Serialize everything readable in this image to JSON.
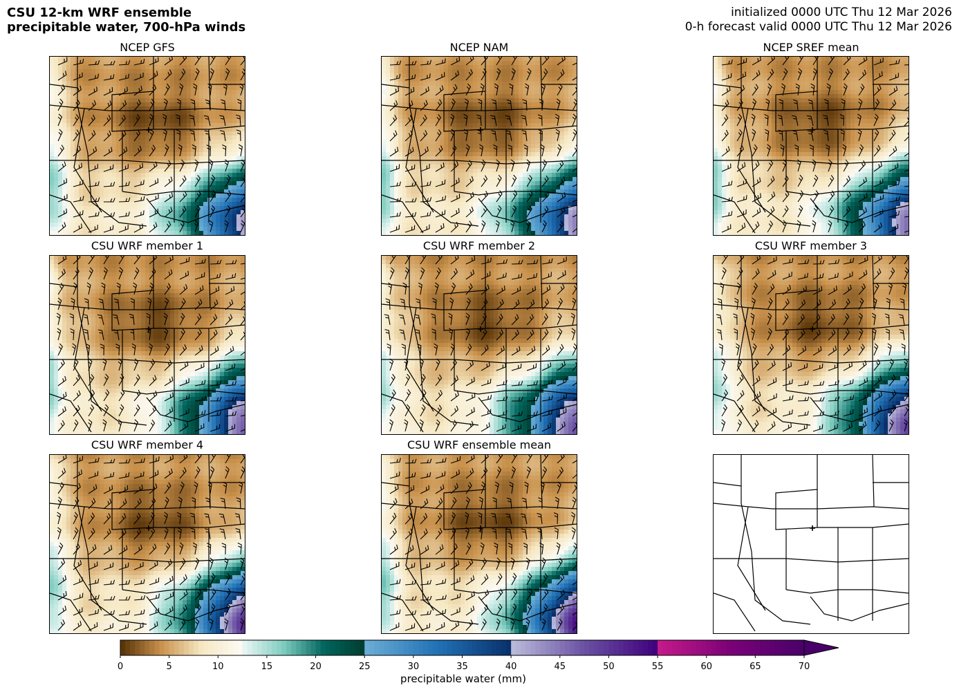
{
  "header": {
    "title_line1": "CSU 12-km WRF ensemble",
    "title_line2": "precipitable water, 700-hPa winds",
    "init_line": "initialized 0000 UTC Thu 12 Mar 2026",
    "valid_line": "0-h forecast valid 0000 UTC Thu 12 Mar 2026"
  },
  "panels": [
    {
      "title": "NCEP GFS"
    },
    {
      "title": "NCEP NAM"
    },
    {
      "title": "NCEP SREF mean"
    },
    {
      "title": "CSU WRF member 1"
    },
    {
      "title": "CSU WRF member 2"
    },
    {
      "title": "CSU WRF member 3"
    },
    {
      "title": "CSU WRF member 4"
    },
    {
      "title": "CSU WRF ensemble mean"
    },
    {
      "title": ""
    }
  ],
  "chart_data": {
    "type": "heatmap",
    "colorbar": {
      "label": "precipitable water (mm)",
      "ticks": [
        0,
        5,
        10,
        15,
        20,
        25,
        30,
        35,
        40,
        45,
        50,
        55,
        60,
        65,
        70
      ],
      "range": [
        0,
        70
      ],
      "extend": "max",
      "segments": [
        {
          "from": 0,
          "to": 12.5,
          "colors": [
            "#543005",
            "#c9924d",
            "#f6e8c3",
            "#fbfaf4"
          ]
        },
        {
          "from": 12.5,
          "to": 25,
          "colors": [
            "#ecf7f5",
            "#80cdc1",
            "#01665e",
            "#003c30"
          ]
        },
        {
          "from": 25,
          "to": 40,
          "colors": [
            "#6baed6",
            "#2171b5",
            "#08306b"
          ]
        },
        {
          "from": 40,
          "to": 55,
          "colors": [
            "#bcbddc",
            "#6a51a3",
            "#3f007d"
          ]
        },
        {
          "from": 55,
          "to": 70,
          "colors": [
            "#c51b8a",
            "#7a0177",
            "#49006a"
          ]
        }
      ]
    }
  }
}
